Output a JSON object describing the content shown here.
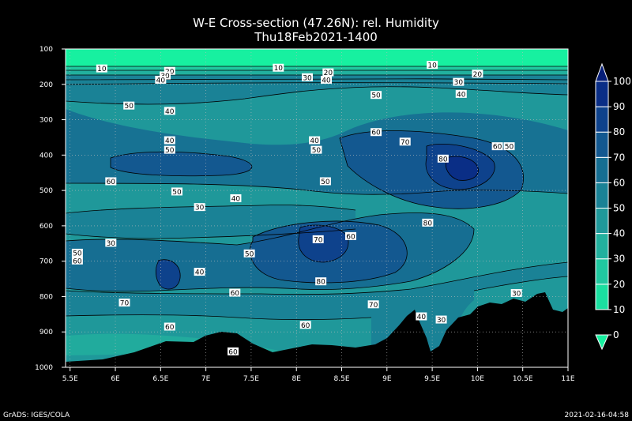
{
  "chart_data": {
    "type": "heatmap",
    "title": "W-E Cross-section (47.26N): rel. Humidity",
    "subtitle": "Thu18Feb2021-1400",
    "x_ticks": [
      "5.5E",
      "6E",
      "6.5E",
      "7E",
      "7.5E",
      "8E",
      "8.5E",
      "9E",
      "9.5E",
      "10E",
      "10.5E",
      "11E"
    ],
    "x_range": [
      5.45,
      11.0
    ],
    "y_ticks": [
      100,
      200,
      300,
      400,
      500,
      600,
      700,
      800,
      900,
      1000
    ],
    "y_range": [
      100,
      1000
    ],
    "grid": true,
    "colorbar_ticks": [
      0,
      10,
      20,
      30,
      40,
      50,
      60,
      70,
      80,
      90,
      100
    ],
    "colorbar_colors": [
      "#17f0a0",
      "#1adfa0",
      "#20c8a0",
      "#22b09e",
      "#1f989a",
      "#1a8296",
      "#166e92",
      "#135890",
      "#0e428c",
      "#0a2e86",
      "#061e78"
    ],
    "contour_labels": [
      {
        "text": "10",
        "x": 5.85,
        "y": 155
      },
      {
        "text": "20",
        "x": 6.6,
        "y": 162
      },
      {
        "text": "30",
        "x": 6.55,
        "y": 175
      },
      {
        "text": "40",
        "x": 6.5,
        "y": 187
      },
      {
        "text": "50",
        "x": 6.15,
        "y": 260
      },
      {
        "text": "40",
        "x": 6.6,
        "y": 275
      },
      {
        "text": "10",
        "x": 7.8,
        "y": 153
      },
      {
        "text": "20",
        "x": 8.35,
        "y": 166
      },
      {
        "text": "30",
        "x": 8.12,
        "y": 180
      },
      {
        "text": "40",
        "x": 8.33,
        "y": 187
      },
      {
        "text": "50",
        "x": 8.88,
        "y": 230
      },
      {
        "text": "10",
        "x": 9.5,
        "y": 145
      },
      {
        "text": "20",
        "x": 10.0,
        "y": 170
      },
      {
        "text": "30",
        "x": 9.79,
        "y": 193
      },
      {
        "text": "40",
        "x": 9.82,
        "y": 227
      },
      {
        "text": "60",
        "x": 8.88,
        "y": 335
      },
      {
        "text": "70",
        "x": 9.2,
        "y": 362
      },
      {
        "text": "80",
        "x": 9.62,
        "y": 410
      },
      {
        "text": "60",
        "x": 10.22,
        "y": 375
      },
      {
        "text": "50",
        "x": 10.35,
        "y": 375
      },
      {
        "text": "40",
        "x": 6.6,
        "y": 358
      },
      {
        "text": "50",
        "x": 6.6,
        "y": 385
      },
      {
        "text": "40",
        "x": 8.2,
        "y": 358
      },
      {
        "text": "50",
        "x": 8.22,
        "y": 385
      },
      {
        "text": "60",
        "x": 5.95,
        "y": 474
      },
      {
        "text": "50",
        "x": 6.68,
        "y": 503
      },
      {
        "text": "40",
        "x": 7.33,
        "y": 522
      },
      {
        "text": "30",
        "x": 6.93,
        "y": 547
      },
      {
        "text": "50",
        "x": 8.32,
        "y": 474
      },
      {
        "text": "80",
        "x": 9.45,
        "y": 591
      },
      {
        "text": "70",
        "x": 8.24,
        "y": 638
      },
      {
        "text": "60",
        "x": 8.6,
        "y": 629
      },
      {
        "text": "30",
        "x": 5.95,
        "y": 648
      },
      {
        "text": "50",
        "x": 5.58,
        "y": 676
      },
      {
        "text": "60",
        "x": 5.58,
        "y": 698
      },
      {
        "text": "40",
        "x": 6.93,
        "y": 730
      },
      {
        "text": "50",
        "x": 7.48,
        "y": 678
      },
      {
        "text": "80",
        "x": 8.27,
        "y": 757
      },
      {
        "text": "60",
        "x": 7.32,
        "y": 789
      },
      {
        "text": "70",
        "x": 6.1,
        "y": 817
      },
      {
        "text": "70",
        "x": 8.85,
        "y": 822
      },
      {
        "text": "40",
        "x": 9.38,
        "y": 856
      },
      {
        "text": "30",
        "x": 9.6,
        "y": 865
      },
      {
        "text": "30",
        "x": 10.43,
        "y": 790
      },
      {
        "text": "60",
        "x": 6.6,
        "y": 885
      },
      {
        "text": "60",
        "x": 8.1,
        "y": 880
      },
      {
        "text": "60",
        "x": 7.3,
        "y": 955
      }
    ]
  },
  "footer": {
    "left": "GrADS: IGES/COLA",
    "right": "2021-02-16-04:58"
  }
}
